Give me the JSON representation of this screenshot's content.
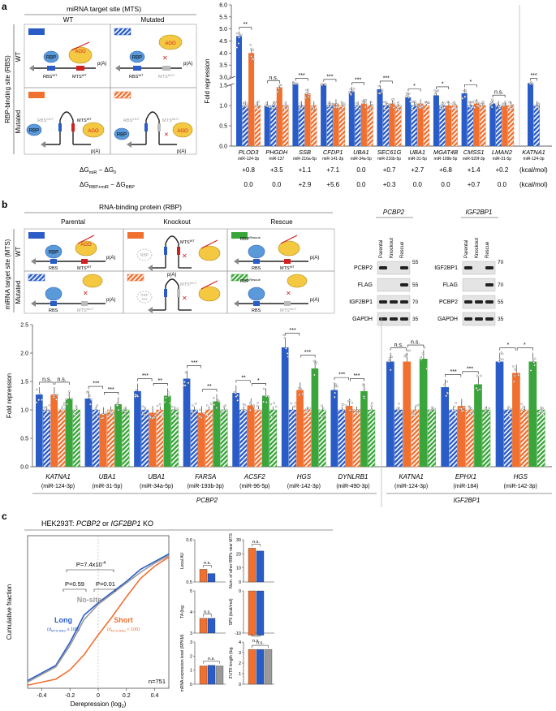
{
  "colors": {
    "blue": "#2a5cc8",
    "orange": "#f07030",
    "green": "#3aa53a",
    "grey": "#9a9a9a",
    "dark": "#222222",
    "ago": "#f5c842"
  },
  "panel_a": {
    "label": "a",
    "header": "miRNA target site (MTS)",
    "col_wt": "WT",
    "col_mut": "Mutated",
    "row_header": "RBP-binding site (RBS)",
    "row_wt": "WT",
    "row_mut": "Mutated",
    "rbp": "RBP",
    "ago": "AGO",
    "pa": "p(A)",
    "rbs_wt": "RBS",
    "mts_wt": "MTS",
    "mts_mut": "MTS",
    "sup_wt": "WT",
    "sup_mut": "MUT",
    "ylabel": "Fold repression",
    "delta_g_row1_label": "ΔG",
    "delta_g_row1_sub_a": "miR",
    "delta_g_row1_mid": " − ΔG",
    "delta_g_row1_sub_b": "0",
    "delta_g_row2_label": "ΔG",
    "delta_g_row2_sub_a": "RBP+miR",
    "delta_g_row2_mid": " − ΔG",
    "delta_g_row2_sub_b": "RBP",
    "unit": "(kcal/mol)"
  },
  "chart_data": [
    {
      "type": "bar",
      "title": "Fold repression by target",
      "ylabel": "Fold repression",
      "yticks_top": [
        "3.0",
        "3.5",
        "4.0",
        "4.5",
        "5.0",
        "5.5",
        "6.0"
      ],
      "yticks_bottom": [
        "0.0",
        "0.5",
        "1.0",
        "1.5"
      ],
      "categories": [
        "PLOD3",
        "PHGDH",
        "SSB",
        "CFDP1",
        "UBA1",
        "SEC61G",
        "UBA1",
        "MGAT4B",
        "CMSS1",
        "LMAN2",
        "KATNA1"
      ],
      "mirnas": [
        "miR-124-3p",
        "miR-137",
        "miR-216a-5p",
        "miR-141-3p",
        "miR-34a-5p",
        "miR-216b-5p",
        "miR-31-5p",
        "miR-199b-5p",
        "miR-520f-3p",
        "miR-31-5p",
        "miR-124-3p"
      ],
      "significance": [
        "**",
        "n.s.",
        "***",
        "***",
        "***",
        "***",
        "*",
        "*",
        "*",
        "n.s.",
        "***"
      ],
      "series": [
        {
          "name": "WT/WT",
          "values": [
            4.7,
            1.0,
            1.9,
            1.7,
            1.35,
            1.4,
            1.2,
            1.25,
            1.3,
            1.05,
            1.9
          ]
        },
        {
          "name": "WT/Mut",
          "values": [
            1.0,
            1.0,
            1.0,
            1.0,
            1.0,
            1.0,
            1.0,
            1.0,
            1.0,
            1.0,
            1.0
          ]
        },
        {
          "name": "Mut/WT",
          "values": [
            4.0,
            1.45,
            1.3,
            1.05,
            1.05,
            1.05,
            1.05,
            1.0,
            1.05,
            1.0,
            null
          ]
        },
        {
          "name": "Mut/Mut",
          "values": [
            1.0,
            1.0,
            1.0,
            1.0,
            1.0,
            1.0,
            1.0,
            1.0,
            1.0,
            1.0,
            null
          ]
        }
      ],
      "dg_mir": [
        "+0.8",
        "+3.5",
        "+1.1",
        "+7.1",
        "0.0",
        "+0.7",
        "+2.7",
        "+6.8",
        "+1.4",
        "+0.2"
      ],
      "dg_rbp": [
        "0.0",
        "0.0",
        "+2.9",
        "+5.6",
        "0.0",
        "+0.3",
        "0.0",
        "0.0",
        "+0.7",
        "0.0"
      ]
    },
    {
      "type": "bar",
      "title": "Fold repression in parental, knockout and rescue",
      "ylabel": "Fold repression",
      "ylim": [
        0,
        2.5
      ],
      "yticks": [
        "0.0",
        "0.5",
        "1.0",
        "1.5",
        "2.0",
        "2.5"
      ],
      "categories": [
        "KATNA1",
        "UBA1",
        "UBA1",
        "FARSA",
        "ACSF2",
        "HGS",
        "DYNLRB1",
        "KATNA1",
        "EPHX1",
        "HGS"
      ],
      "mirnas": [
        "(miR-124-3p)",
        "(miR-31-5p)",
        "(miR-34a-5p)",
        "(miR-193b-3p)",
        "(miR-96-5p)",
        "(miR-142-3p)",
        "(miR-490-3p)",
        "(miR-124-3p)",
        "(miR-184)",
        "(miR-142-3p)"
      ],
      "group_labels": [
        "PCBP2",
        "IGF2BP1"
      ],
      "sig1": [
        "n.s.",
        "***",
        "***",
        "***",
        "**",
        "***",
        "***",
        "n.s.",
        "***",
        "*"
      ],
      "sig2": [
        "n.s.",
        "***",
        "**",
        "**",
        "*",
        "***",
        "***",
        "n.s.",
        "***",
        "*"
      ],
      "series": [
        {
          "name": "Parental",
          "values": [
            1.27,
            1.2,
            1.33,
            1.55,
            1.3,
            2.1,
            1.35,
            1.85,
            1.4,
            1.85
          ]
        },
        {
          "name": "Knockout",
          "values": [
            1.27,
            0.93,
            0.95,
            0.95,
            1.08,
            1.35,
            1.07,
            1.85,
            1.07,
            1.65
          ]
        },
        {
          "name": "Rescue",
          "values": [
            1.2,
            1.1,
            1.25,
            1.15,
            1.25,
            1.73,
            1.33,
            1.9,
            1.45,
            1.85
          ]
        }
      ]
    },
    {
      "type": "line",
      "title": "HEK293T: PCBP2 or IGF2BP1 KO",
      "xlabel": "Derepression (log2)",
      "ylabel": "Cumulative fraction",
      "xlim": [
        -0.5,
        0.5
      ],
      "ylim": [
        0,
        1
      ],
      "xticks": [
        "-0.4",
        "-0.2",
        "0",
        "0.2",
        "0.4"
      ],
      "series": [
        {
          "name": "Long",
          "x": [
            -0.5,
            -0.3,
            -0.2,
            -0.1,
            0,
            0.1,
            0.2,
            0.3,
            0.4,
            0.5
          ],
          "y": [
            0.05,
            0.15,
            0.3,
            0.48,
            0.56,
            0.63,
            0.7,
            0.78,
            0.83,
            0.88
          ]
        },
        {
          "name": "No-site",
          "x": [
            -0.5,
            -0.3,
            -0.2,
            -0.1,
            0,
            0.1,
            0.2,
            0.3,
            0.4,
            0.5
          ],
          "y": [
            0.04,
            0.14,
            0.28,
            0.45,
            0.55,
            0.62,
            0.69,
            0.76,
            0.82,
            0.87
          ]
        },
        {
          "name": "Short",
          "x": [
            -0.5,
            -0.3,
            -0.2,
            -0.1,
            0,
            0.1,
            0.2,
            0.3,
            0.4,
            0.5
          ],
          "y": [
            0.02,
            0.06,
            0.12,
            0.22,
            0.35,
            0.47,
            0.6,
            0.72,
            0.8,
            0.86
          ]
        }
      ]
    }
  ],
  "panel_b": {
    "label": "b",
    "header": "RNA-binding protein (RBP)",
    "cols": [
      "Parental",
      "Knockout",
      "Rescue"
    ],
    "row_header": "miRNA target site (MTS)",
    "rows": [
      "WT",
      "Mutated"
    ],
    "rbs": "RBS",
    "rbp": "RBP",
    "rbp_ko": "RBP",
    "rbp_rescue": "RBP",
    "sup_rescue": "Rescue",
    "sup_ko": "KO",
    "pa": "p(A)",
    "ago": "AGO",
    "blot1": {
      "title": "PCBP2",
      "lanes": [
        "Parental",
        "Knockout",
        "Rescue"
      ],
      "rows": [
        "PCBP2",
        "FLAG",
        "IGF2BP1",
        "GAPDH"
      ],
      "markers": [
        "55",
        "55",
        "70",
        "35"
      ]
    },
    "blot2": {
      "title": "IGF2BP1",
      "lanes": [
        "Parental",
        "Knockout",
        "Rescue"
      ],
      "rows": [
        "IGF2BP1",
        "FLAG",
        "PCBP2",
        "GAPDH"
      ],
      "markers": [
        "70",
        "70",
        "55",
        "35"
      ]
    }
  },
  "panel_c": {
    "label": "c",
    "title_prefix": "HEK293T: ",
    "title_gene1": "PCBP2",
    "title_mid": " or ",
    "title_gene2": "IGF2BP1",
    "title_suffix": " KO",
    "p_values": [
      "P=7.4x10",
      "-4",
      "P=0.59",
      "P=0.01"
    ],
    "series_labels": [
      "Long",
      "No-site",
      "Short"
    ],
    "long_sub": "(d",
    "long_sub2": "MTS-RBS",
    "long_sub3": " ≥ 100)",
    "short_sub3": " < 100)",
    "n_label": "n=751",
    "xlabel": "Derepression (log",
    "xlabel_sub": "2",
    "xlabel_end": ")",
    "ylabel": "Cumulative fraction",
    "small_panels": [
      {
        "ylabel": "Local AU",
        "ticks": [
          "0.5",
          "0.6"
        ],
        "sig": "n.s.",
        "values": [
          0.53,
          0.52
        ],
        "max": 0.6
      },
      {
        "ylabel": "TA (log",
        "ticks": [
          "3",
          "4",
          "5"
        ],
        "sig": "n.s.",
        "values": [
          3.7,
          3.7
        ],
        "max": 5
      },
      {
        "ylabel": "mRNA expression level (RPKM)",
        "ticks": [
          "0",
          "1",
          "2",
          "3"
        ],
        "sig": "n.s.",
        "values": [
          1.3,
          1.35,
          1.3
        ],
        "max": 3
      },
      {
        "ylabel": "Num. of other RBPs near MTS",
        "ticks": [
          "0",
          "10",
          "20",
          "30"
        ],
        "sig": "n.s.",
        "values": [
          24,
          22
        ],
        "max": 30
      },
      {
        "ylabel": "SPS (kcal/mol)",
        "ticks": [
          "0",
          "-10"
        ],
        "sig": "n.s.",
        "values": [
          -10.5,
          -10.5
        ],
        "max": 0
      },
      {
        "ylabel": "3′UTR length (log",
        "ticks": [
          "0",
          "1",
          "2",
          "3",
          "4"
        ],
        "sig": "n.s.",
        "values": [
          3.3,
          3.3,
          3.3
        ],
        "max": 4
      }
    ]
  }
}
